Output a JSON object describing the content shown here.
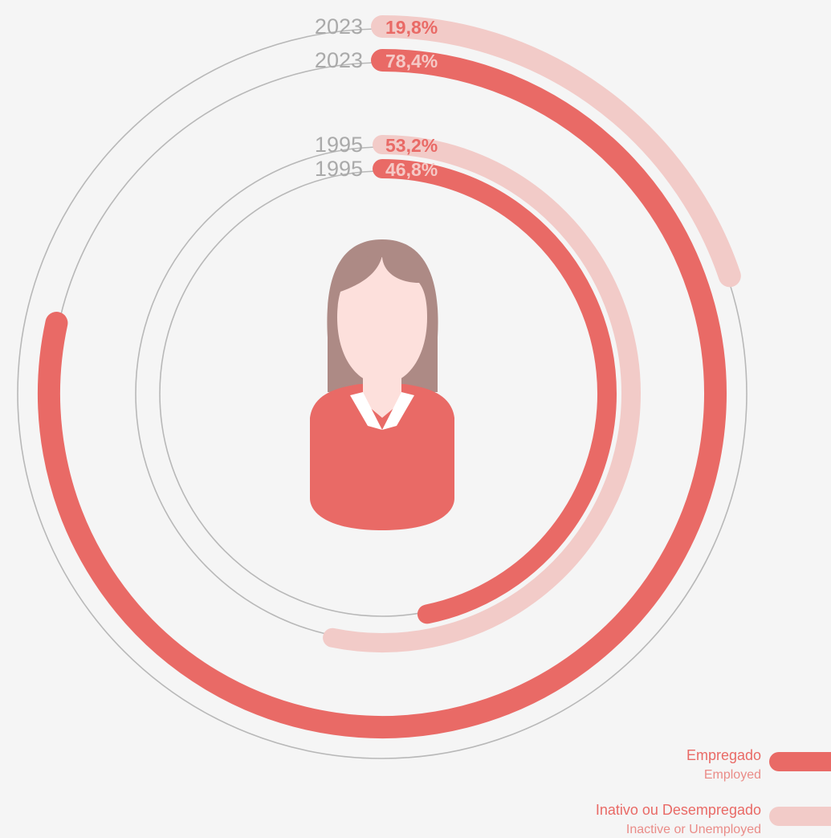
{
  "chart_data": {
    "type": "radial_bar",
    "categories": [
      "2023",
      "1995"
    ],
    "ylim": [
      0,
      100
    ],
    "series": [
      {
        "name": "Empregado",
        "subtitle": "Employed",
        "color": "#e96a66",
        "label_color": "#f5c9c6",
        "values": [
          78.4,
          46.8
        ],
        "value_labels": [
          "78,4%",
          "46,8%"
        ]
      },
      {
        "name": "Inativo ou Desempregado",
        "subtitle": "Inactive or Unemployed",
        "color": "#f2cbc8",
        "label_color": "#e96a66",
        "values": [
          19.8,
          53.2
        ],
        "value_labels": [
          "19,8%",
          "53,2%"
        ]
      }
    ]
  }
}
